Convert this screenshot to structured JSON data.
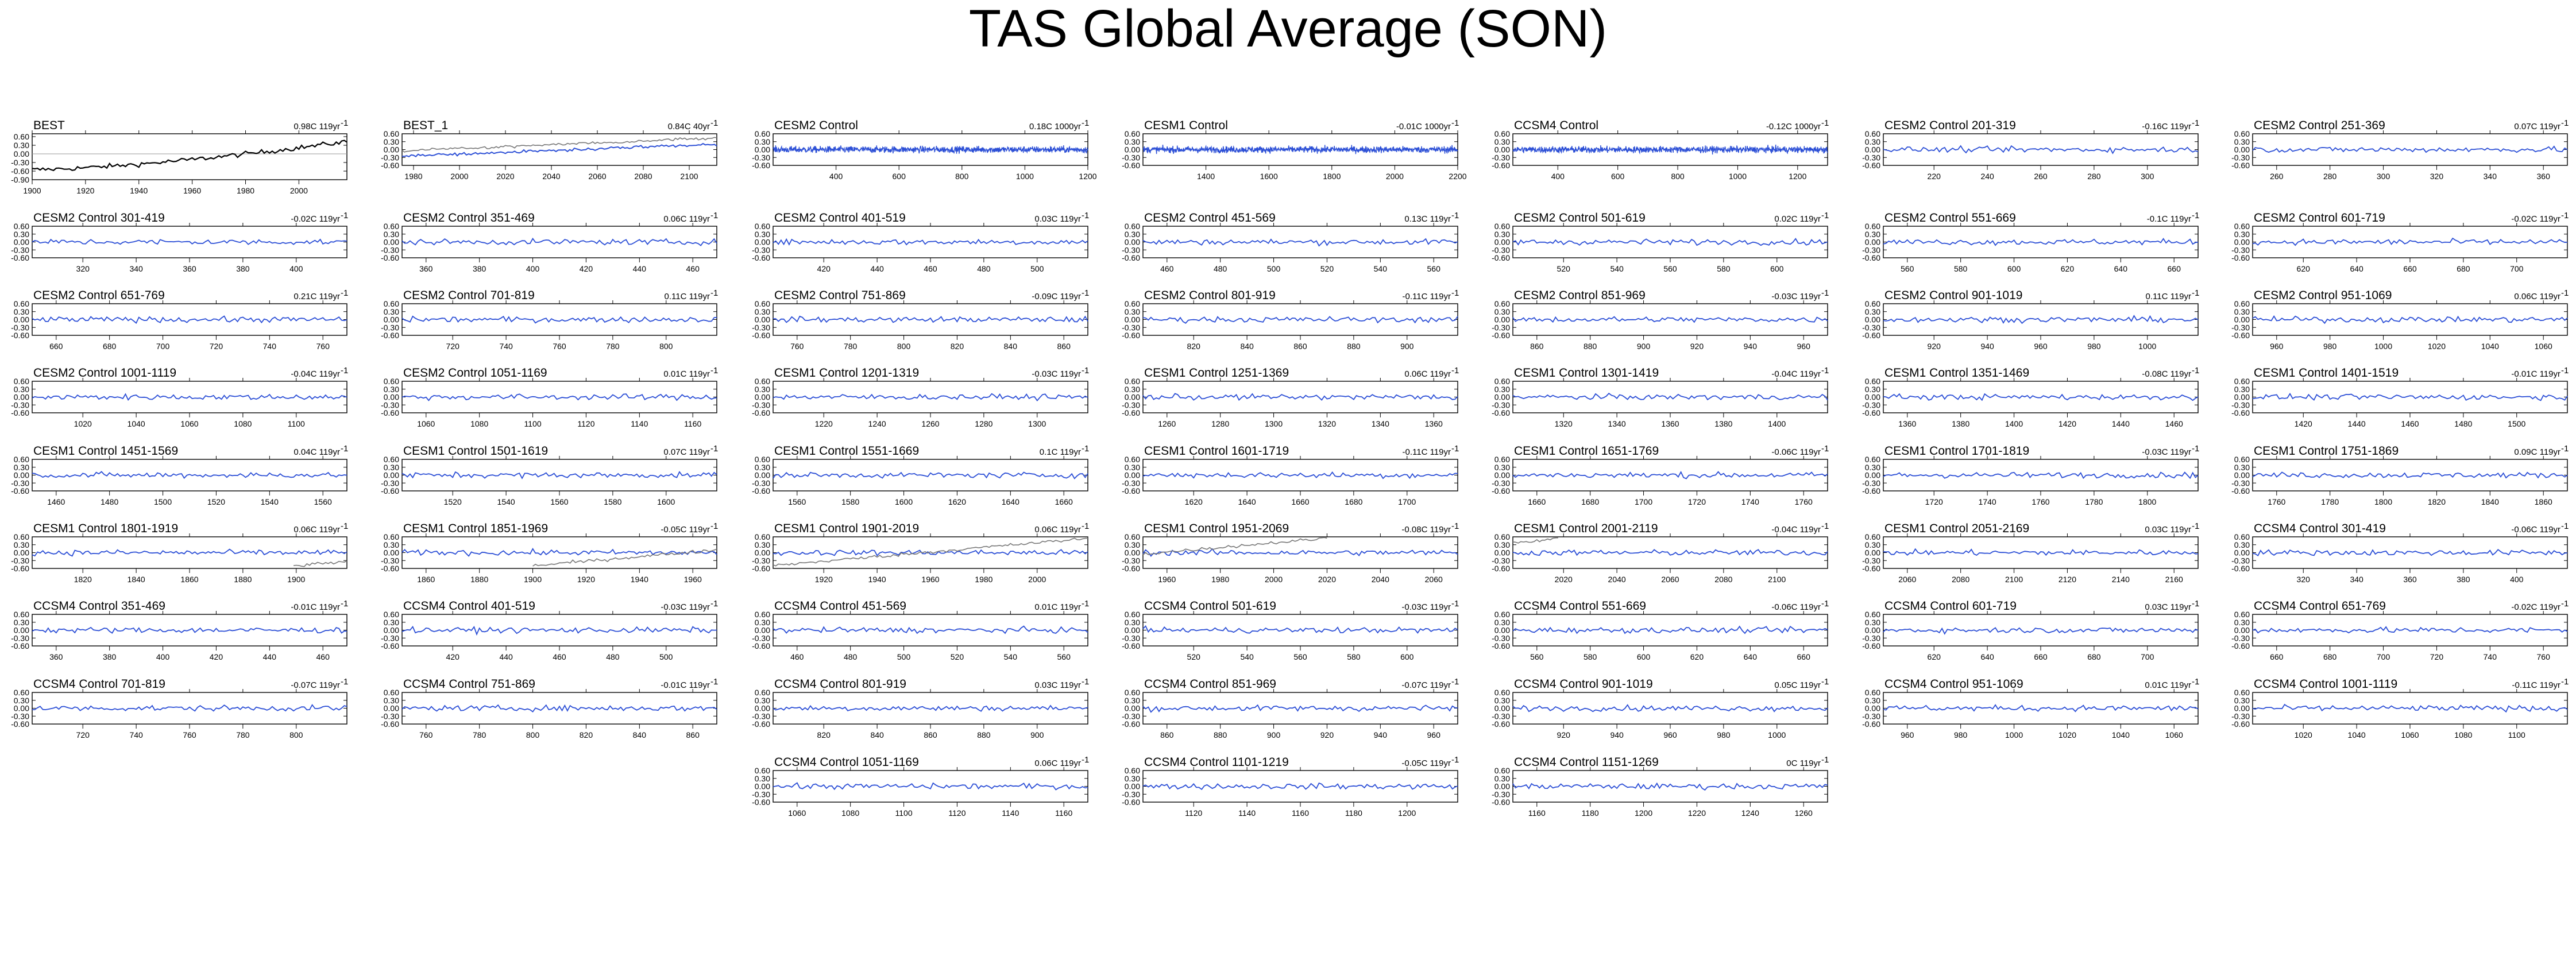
{
  "title": "TAS Global Average (SON)",
  "yticks_std": [
    "0.60",
    "0.30",
    "0.00",
    "-0.30",
    "-0.60"
  ],
  "yticks_best": [
    "0.60",
    "0.30",
    "0.00",
    "-0.30",
    "-0.60",
    "-0.90"
  ],
  "colors": {
    "model": "#2c4fd6",
    "obs": "#000000",
    "obs_overlay": "#777777"
  },
  "chart_data": [
    {
      "type": "line",
      "panel": "BEST",
      "trend": "0.98C 119yr",
      "xticks": [
        1900,
        1920,
        1940,
        1960,
        1980,
        2000
      ],
      "xlim": [
        1900,
        2018
      ],
      "ylim": [
        -0.9,
        0.7
      ],
      "series": [
        {
          "color": "#000000"
        }
      ]
    },
    {
      "type": "line",
      "panel": "BEST_1",
      "trend": "0.84C 40yr",
      "xticks": [
        1980,
        2000,
        2020,
        2040,
        2060,
        2080,
        2100
      ],
      "xlim": [
        1975,
        2112
      ],
      "ylim": [
        -0.6,
        0.6
      ],
      "series": [
        {
          "color": "#2c4fd6"
        },
        {
          "color": "#777777"
        }
      ]
    },
    {
      "type": "line",
      "panel": "CESM2 Control",
      "trend": "0.18C 1000yr",
      "xticks": [
        400,
        600,
        800,
        1000,
        1200
      ],
      "xlim": [
        200,
        1200
      ],
      "ylim": [
        -0.6,
        0.6
      ],
      "series": [
        {
          "color": "#2c4fd6"
        }
      ]
    },
    {
      "type": "line",
      "panel": "CESM1 Control",
      "trend": "-0.01C 1000yr",
      "xticks": [
        1400,
        1600,
        1800,
        2000,
        2200
      ],
      "xlim": [
        1200,
        2200
      ],
      "ylim": [
        -0.6,
        0.6
      ],
      "series": [
        {
          "color": "#2c4fd6"
        }
      ]
    },
    {
      "type": "line",
      "panel": "CCSM4 Control",
      "trend": "-0.12C 1000yr",
      "xticks": [
        400,
        600,
        800,
        1000,
        1200
      ],
      "xlim": [
        250,
        1300
      ],
      "ylim": [
        -0.6,
        0.6
      ],
      "series": [
        {
          "color": "#2c4fd6"
        }
      ]
    },
    {
      "type": "line",
      "panel": "CESM2 Control 201-319",
      "trend": "-0.16C 119yr",
      "xticks": [
        220,
        240,
        260,
        280,
        300
      ],
      "xlim": [
        201,
        319
      ],
      "ylim": [
        -0.6,
        0.6
      ]
    },
    {
      "type": "line",
      "panel": "CESM2 Control 251-369",
      "trend": "0.07C 119yr",
      "xticks": [
        260,
        280,
        300,
        320,
        340,
        360
      ],
      "xlim": [
        251,
        369
      ],
      "ylim": [
        -0.6,
        0.6
      ]
    },
    {
      "type": "line",
      "panel": "CESM2 Control 301-419",
      "trend": "-0.02C 119yr",
      "xticks": [
        320,
        340,
        360,
        380,
        400
      ],
      "xlim": [
        301,
        419
      ],
      "ylim": [
        -0.6,
        0.6
      ]
    },
    {
      "type": "line",
      "panel": "CESM2 Control 351-469",
      "trend": "0.06C 119yr",
      "xticks": [
        360,
        380,
        400,
        420,
        440,
        460
      ],
      "xlim": [
        351,
        469
      ],
      "ylim": [
        -0.6,
        0.6
      ]
    },
    {
      "type": "line",
      "panel": "CESM2 Control 401-519",
      "trend": "0.03C 119yr",
      "xticks": [
        420,
        440,
        460,
        480,
        500
      ],
      "xlim": [
        401,
        519
      ],
      "ylim": [
        -0.6,
        0.6
      ]
    },
    {
      "type": "line",
      "panel": "CESM2 Control 451-569",
      "trend": "0.13C 119yr",
      "xticks": [
        460,
        480,
        500,
        520,
        540,
        560
      ],
      "xlim": [
        451,
        569
      ],
      "ylim": [
        -0.6,
        0.6
      ]
    },
    {
      "type": "line",
      "panel": "CESM2 Control 501-619",
      "trend": "0.02C 119yr",
      "xticks": [
        520,
        540,
        560,
        580,
        600
      ],
      "xlim": [
        501,
        619
      ],
      "ylim": [
        -0.6,
        0.6
      ]
    },
    {
      "type": "line",
      "panel": "CESM2 Control 551-669",
      "trend": "-0.1C 119yr",
      "xticks": [
        560,
        580,
        600,
        620,
        640,
        660
      ],
      "xlim": [
        551,
        669
      ],
      "ylim": [
        -0.6,
        0.6
      ]
    },
    {
      "type": "line",
      "panel": "CESM2 Control 601-719",
      "trend": "-0.02C 119yr",
      "xticks": [
        620,
        640,
        660,
        680,
        700
      ],
      "xlim": [
        601,
        719
      ],
      "ylim": [
        -0.6,
        0.6
      ]
    },
    {
      "type": "line",
      "panel": "CESM2 Control 651-769",
      "trend": "0.21C 119yr",
      "xticks": [
        660,
        680,
        700,
        720,
        740,
        760
      ],
      "xlim": [
        651,
        769
      ],
      "ylim": [
        -0.6,
        0.6
      ]
    },
    {
      "type": "line",
      "panel": "CESM2 Control 701-819",
      "trend": "0.11C 119yr",
      "xticks": [
        720,
        740,
        760,
        780,
        800
      ],
      "xlim": [
        701,
        819
      ],
      "ylim": [
        -0.6,
        0.6
      ]
    },
    {
      "type": "line",
      "panel": "CESM2 Control 751-869",
      "trend": "-0.09C 119yr",
      "xticks": [
        760,
        780,
        800,
        820,
        840,
        860
      ],
      "xlim": [
        751,
        869
      ],
      "ylim": [
        -0.6,
        0.6
      ]
    },
    {
      "type": "line",
      "panel": "CESM2 Control 801-919",
      "trend": "-0.11C 119yr",
      "xticks": [
        820,
        840,
        860,
        880,
        900
      ],
      "xlim": [
        801,
        919
      ],
      "ylim": [
        -0.6,
        0.6
      ]
    },
    {
      "type": "line",
      "panel": "CESM2 Control 851-969",
      "trend": "-0.03C 119yr",
      "xticks": [
        860,
        880,
        900,
        920,
        940,
        960
      ],
      "xlim": [
        851,
        969
      ],
      "ylim": [
        -0.6,
        0.6
      ]
    },
    {
      "type": "line",
      "panel": "CESM2 Control 901-1019",
      "trend": "0.11C 119yr",
      "xticks": [
        920,
        940,
        960,
        980,
        1000
      ],
      "xlim": [
        901,
        1019
      ],
      "ylim": [
        -0.6,
        0.6
      ]
    },
    {
      "type": "line",
      "panel": "CESM2 Control 951-1069",
      "trend": "0.06C 119yr",
      "xticks": [
        960,
        980,
        1000,
        1020,
        1040,
        1060
      ],
      "xlim": [
        951,
        1069
      ],
      "ylim": [
        -0.6,
        0.6
      ]
    },
    {
      "type": "line",
      "panel": "CESM2 Control 1001-1119",
      "trend": "-0.04C 119yr",
      "xticks": [
        1020,
        1040,
        1060,
        1080,
        1100
      ],
      "xlim": [
        1001,
        1119
      ],
      "ylim": [
        -0.6,
        0.6
      ]
    },
    {
      "type": "line",
      "panel": "CESM2 Control 1051-1169",
      "trend": "0.01C 119yr",
      "xticks": [
        1060,
        1080,
        1100,
        1120,
        1140,
        1160
      ],
      "xlim": [
        1051,
        1169
      ],
      "ylim": [
        -0.6,
        0.6
      ]
    },
    {
      "type": "line",
      "panel": "CESM1 Control 1201-1319",
      "trend": "-0.03C 119yr",
      "xticks": [
        1220,
        1240,
        1260,
        1280,
        1300
      ],
      "xlim": [
        1201,
        1319
      ],
      "ylim": [
        -0.6,
        0.6
      ]
    },
    {
      "type": "line",
      "panel": "CESM1 Control 1251-1369",
      "trend": "0.06C 119yr",
      "xticks": [
        1260,
        1280,
        1300,
        1320,
        1340,
        1360
      ],
      "xlim": [
        1251,
        1369
      ],
      "ylim": [
        -0.6,
        0.6
      ]
    },
    {
      "type": "line",
      "panel": "CESM1 Control 1301-1419",
      "trend": "-0.04C 119yr",
      "xticks": [
        1320,
        1340,
        1360,
        1380,
        1400
      ],
      "xlim": [
        1301,
        1419
      ],
      "ylim": [
        -0.6,
        0.6
      ]
    },
    {
      "type": "line",
      "panel": "CESM1 Control 1351-1469",
      "trend": "-0.08C 119yr",
      "xticks": [
        1360,
        1380,
        1400,
        1420,
        1440,
        1460
      ],
      "xlim": [
        1351,
        1469
      ],
      "ylim": [
        -0.6,
        0.6
      ]
    },
    {
      "type": "line",
      "panel": "CESM1 Control 1401-1519",
      "trend": "-0.01C 119yr",
      "xticks": [
        1420,
        1440,
        1460,
        1480,
        1500
      ],
      "xlim": [
        1401,
        1519
      ],
      "ylim": [
        -0.6,
        0.6
      ]
    },
    {
      "type": "line",
      "panel": "CESM1 Control 1451-1569",
      "trend": "0.04C 119yr",
      "xticks": [
        1460,
        1480,
        1500,
        1520,
        1540,
        1560
      ],
      "xlim": [
        1451,
        1569
      ],
      "ylim": [
        -0.6,
        0.6
      ]
    },
    {
      "type": "line",
      "panel": "CESM1 Control 1501-1619",
      "trend": "0.07C 119yr",
      "xticks": [
        1520,
        1540,
        1560,
        1580,
        1600
      ],
      "xlim": [
        1501,
        1619
      ],
      "ylim": [
        -0.6,
        0.6
      ]
    },
    {
      "type": "line",
      "panel": "CESM1 Control 1551-1669",
      "trend": "0.1C 119yr",
      "xticks": [
        1560,
        1580,
        1600,
        1620,
        1640,
        1660
      ],
      "xlim": [
        1551,
        1669
      ],
      "ylim": [
        -0.6,
        0.6
      ]
    },
    {
      "type": "line",
      "panel": "CESM1 Control 1601-1719",
      "trend": "-0.11C 119yr",
      "xticks": [
        1620,
        1640,
        1660,
        1680,
        1700
      ],
      "xlim": [
        1601,
        1719
      ],
      "ylim": [
        -0.6,
        0.6
      ]
    },
    {
      "type": "line",
      "panel": "CESM1 Control 1651-1769",
      "trend": "-0.06C 119yr",
      "xticks": [
        1660,
        1680,
        1700,
        1720,
        1740,
        1760
      ],
      "xlim": [
        1651,
        1769
      ],
      "ylim": [
        -0.6,
        0.6
      ]
    },
    {
      "type": "line",
      "panel": "CESM1 Control 1701-1819",
      "trend": "-0.03C 119yr",
      "xticks": [
        1720,
        1740,
        1760,
        1780,
        1800
      ],
      "xlim": [
        1701,
        1819
      ],
      "ylim": [
        -0.6,
        0.6
      ]
    },
    {
      "type": "line",
      "panel": "CESM1 Control 1751-1869",
      "trend": "0.09C 119yr",
      "xticks": [
        1760,
        1780,
        1800,
        1820,
        1840,
        1860
      ],
      "xlim": [
        1751,
        1869
      ],
      "ylim": [
        -0.6,
        0.6
      ]
    },
    {
      "type": "line",
      "panel": "CESM1 Control 1801-1919",
      "trend": "0.06C 119yr",
      "xticks": [
        1820,
        1840,
        1860,
        1880,
        1900
      ],
      "xlim": [
        1801,
        1919
      ],
      "ylim": [
        -0.6,
        0.6
      ],
      "obs_overlay": true
    },
    {
      "type": "line",
      "panel": "CESM1 Control 1851-1969",
      "trend": "-0.05C 119yr",
      "xticks": [
        1860,
        1880,
        1900,
        1920,
        1940,
        1960
      ],
      "xlim": [
        1851,
        1969
      ],
      "ylim": [
        -0.6,
        0.6
      ],
      "obs_overlay": true
    },
    {
      "type": "line",
      "panel": "CESM1 Control 1901-2019",
      "trend": "0.06C 119yr",
      "xticks": [
        1920,
        1940,
        1960,
        1980,
        2000
      ],
      "xlim": [
        1901,
        2019
      ],
      "ylim": [
        -0.6,
        0.6
      ],
      "obs_overlay": true
    },
    {
      "type": "line",
      "panel": "CESM1 Control 1951-2069",
      "trend": "-0.08C 119yr",
      "xticks": [
        1960,
        1980,
        2000,
        2020,
        2040,
        2060
      ],
      "xlim": [
        1951,
        2069
      ],
      "ylim": [
        -0.6,
        0.6
      ],
      "obs_overlay": true
    },
    {
      "type": "line",
      "panel": "CESM1 Control 2001-2119",
      "trend": "-0.04C 119yr",
      "xticks": [
        2020,
        2040,
        2060,
        2080,
        2100
      ],
      "xlim": [
        2001,
        2119
      ],
      "ylim": [
        -0.6,
        0.6
      ],
      "obs_overlay": true
    },
    {
      "type": "line",
      "panel": "CESM1 Control 2051-2169",
      "trend": "0.03C 119yr",
      "xticks": [
        2060,
        2080,
        2100,
        2120,
        2140,
        2160
      ],
      "xlim": [
        2051,
        2169
      ],
      "ylim": [
        -0.6,
        0.6
      ]
    },
    {
      "type": "line",
      "panel": "CCSM4 Control 301-419",
      "trend": "-0.06C 119yr",
      "xticks": [
        320,
        340,
        360,
        380,
        400
      ],
      "xlim": [
        301,
        419
      ],
      "ylim": [
        -0.6,
        0.6
      ]
    },
    {
      "type": "line",
      "panel": "CCSM4 Control 351-469",
      "trend": "-0.01C 119yr",
      "xticks": [
        360,
        380,
        400,
        420,
        440,
        460
      ],
      "xlim": [
        351,
        469
      ],
      "ylim": [
        -0.6,
        0.6
      ]
    },
    {
      "type": "line",
      "panel": "CCSM4 Control 401-519",
      "trend": "-0.03C 119yr",
      "xticks": [
        420,
        440,
        460,
        480,
        500
      ],
      "xlim": [
        401,
        519
      ],
      "ylim": [
        -0.6,
        0.6
      ]
    },
    {
      "type": "line",
      "panel": "CCSM4 Control 451-569",
      "trend": "0.01C 119yr",
      "xticks": [
        460,
        480,
        500,
        520,
        540,
        560
      ],
      "xlim": [
        451,
        569
      ],
      "ylim": [
        -0.6,
        0.6
      ]
    },
    {
      "type": "line",
      "panel": "CCSM4 Control 501-619",
      "trend": "-0.03C 119yr",
      "xticks": [
        520,
        540,
        560,
        580,
        600
      ],
      "xlim": [
        501,
        619
      ],
      "ylim": [
        -0.6,
        0.6
      ]
    },
    {
      "type": "line",
      "panel": "CCSM4 Control 551-669",
      "trend": "-0.06C 119yr",
      "xticks": [
        560,
        580,
        600,
        620,
        640,
        660
      ],
      "xlim": [
        551,
        669
      ],
      "ylim": [
        -0.6,
        0.6
      ]
    },
    {
      "type": "line",
      "panel": "CCSM4 Control 601-719",
      "trend": "0.03C 119yr",
      "xticks": [
        620,
        640,
        660,
        680,
        700
      ],
      "xlim": [
        601,
        719
      ],
      "ylim": [
        -0.6,
        0.6
      ]
    },
    {
      "type": "line",
      "panel": "CCSM4 Control 651-769",
      "trend": "-0.02C 119yr",
      "xticks": [
        660,
        680,
        700,
        720,
        740,
        760
      ],
      "xlim": [
        651,
        769
      ],
      "ylim": [
        -0.6,
        0.6
      ]
    },
    {
      "type": "line",
      "panel": "CCSM4 Control 701-819",
      "trend": "-0.07C 119yr",
      "xticks": [
        720,
        740,
        760,
        780,
        800
      ],
      "xlim": [
        701,
        819
      ],
      "ylim": [
        -0.6,
        0.6
      ]
    },
    {
      "type": "line",
      "panel": "CCSM4 Control 751-869",
      "trend": "-0.01C 119yr",
      "xticks": [
        760,
        780,
        800,
        820,
        840,
        860
      ],
      "xlim": [
        751,
        869
      ],
      "ylim": [
        -0.6,
        0.6
      ]
    },
    {
      "type": "line",
      "panel": "CCSM4 Control 801-919",
      "trend": "0.03C 119yr",
      "xticks": [
        820,
        840,
        860,
        880,
        900
      ],
      "xlim": [
        801,
        919
      ],
      "ylim": [
        -0.6,
        0.6
      ]
    },
    {
      "type": "line",
      "panel": "CCSM4 Control 851-969",
      "trend": "-0.07C 119yr",
      "xticks": [
        860,
        880,
        900,
        920,
        940,
        960
      ],
      "xlim": [
        851,
        969
      ],
      "ylim": [
        -0.6,
        0.6
      ]
    },
    {
      "type": "line",
      "panel": "CCSM4 Control 901-1019",
      "trend": "0.05C 119yr",
      "xticks": [
        920,
        940,
        960,
        980,
        1000
      ],
      "xlim": [
        901,
        1019
      ],
      "ylim": [
        -0.6,
        0.6
      ]
    },
    {
      "type": "line",
      "panel": "CCSM4 Control 951-1069",
      "trend": "0.01C 119yr",
      "xticks": [
        960,
        980,
        1000,
        1020,
        1040,
        1060
      ],
      "xlim": [
        951,
        1069
      ],
      "ylim": [
        -0.6,
        0.6
      ]
    },
    {
      "type": "line",
      "panel": "CCSM4 Control 1001-1119",
      "trend": "-0.11C 119yr",
      "xticks": [
        1020,
        1040,
        1060,
        1080,
        1100
      ],
      "xlim": [
        1001,
        1119
      ],
      "ylim": [
        -0.6,
        0.6
      ]
    },
    {
      "type": "line",
      "panel": "CCSM4 Control 1051-1169",
      "trend": "0.06C 119yr",
      "xticks": [
        1060,
        1080,
        1100,
        1120,
        1140,
        1160
      ],
      "xlim": [
        1051,
        1169
      ],
      "ylim": [
        -0.6,
        0.6
      ]
    },
    {
      "type": "line",
      "panel": "CCSM4 Control 1101-1219",
      "trend": "-0.05C 119yr",
      "xticks": [
        1120,
        1140,
        1160,
        1180,
        1200
      ],
      "xlim": [
        1101,
        1219
      ],
      "ylim": [
        -0.6,
        0.6
      ]
    },
    {
      "type": "line",
      "panel": "CCSM4 Control 1151-1269",
      "trend": "0C 119yr",
      "xticks": [
        1160,
        1180,
        1200,
        1220,
        1240,
        1260
      ],
      "xlim": [
        1151,
        1269
      ],
      "ylim": [
        -0.6,
        0.6
      ]
    }
  ]
}
